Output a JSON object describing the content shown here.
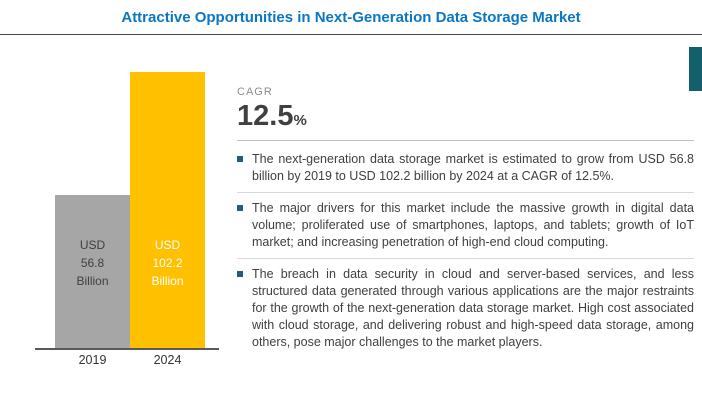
{
  "title": "Attractive Opportunities in Next-Generation Data Storage Market",
  "chart_data": {
    "type": "bar",
    "categories": [
      "2019",
      "2024"
    ],
    "values": [
      56.8,
      102.2
    ],
    "value_unit": "USD Billion",
    "bar_labels": [
      "USD\n56.8\nBillion",
      "USD\n102.2\nBillion"
    ],
    "bar_colors": [
      "#A6A6A6",
      "#FFC000"
    ],
    "bar_label_colors": [
      "#404040",
      "#FFFFFF"
    ],
    "ylim": [
      0,
      102.2
    ],
    "grid": false,
    "legend": "none"
  },
  "cagr": {
    "label": "CAGR",
    "value": "12.5",
    "unit": "%"
  },
  "bullets": [
    {
      "text": "The next-generation data storage market is estimated to grow from USD 56.8 billion by 2019 to USD 102.2 billion by 2024 at a CAGR of 12.5%."
    },
    {
      "text": "The major drivers for this market include the massive growth in digital data volume; proliferated use of smartphones, laptops, and tablets; growth of IoT market; and increasing penetration of high-end cloud computing."
    },
    {
      "text": "The breach in data security in cloud and server-based services, and less structured data generated through various applications are the major restraints for the growth of the next-generation data storage market. High cost associated with cloud storage, and delivering robust and high-speed data storage, among others, pose major challenges to the market players."
    }
  ],
  "colors": {
    "title_blue": "#0B76C2",
    "axis_gray": "#595959",
    "teal_accent": "#13606B",
    "bullet_square": "#1F5F78",
    "divider_gray": "#BFBFBF"
  }
}
